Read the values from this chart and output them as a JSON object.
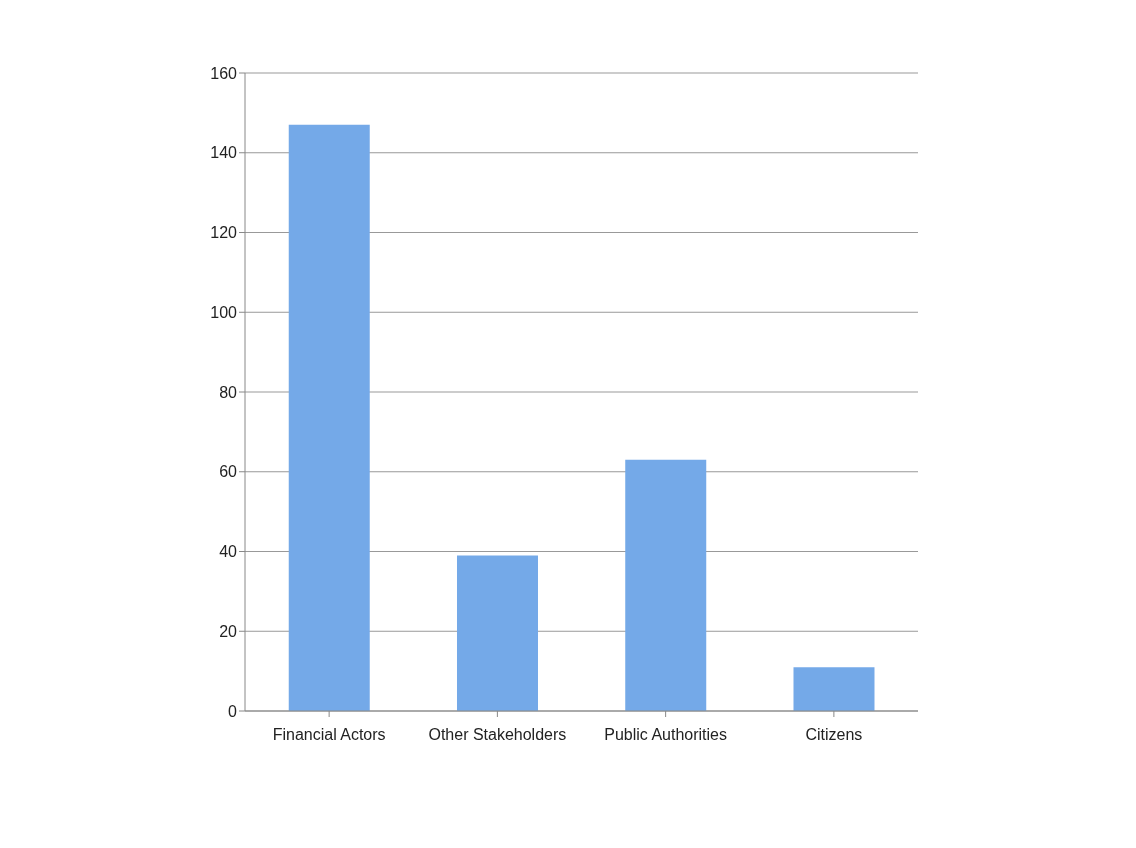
{
  "chart_data": {
    "type": "bar",
    "categories": [
      "Financial Actors",
      "Other Stakeholders",
      "Public Authorities",
      "Citizens"
    ],
    "values": [
      147,
      39,
      63,
      11
    ],
    "color": "#74a9e8",
    "ylim": [
      0,
      160
    ],
    "yticks": [
      0,
      20,
      40,
      60,
      80,
      100,
      120,
      140,
      160
    ],
    "grid": "y"
  }
}
